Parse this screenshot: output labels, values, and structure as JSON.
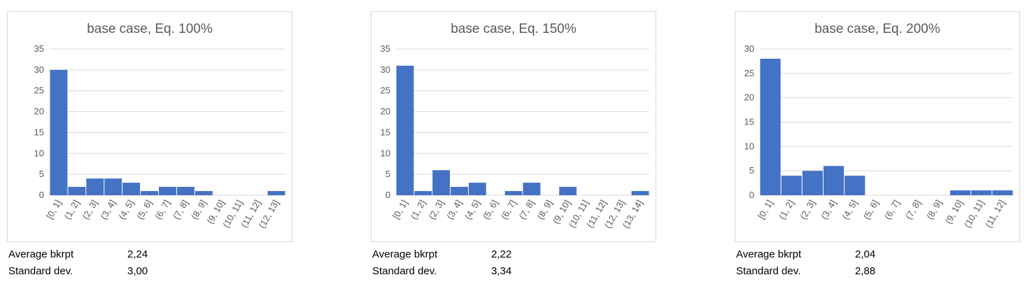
{
  "colors": {
    "bar": "#4472c4",
    "grid": "#d9d9d9",
    "axis_text": "#595959"
  },
  "chart_data": [
    {
      "type": "bar",
      "title": "base case, Eq. 100%",
      "categories": [
        "[0, 1]",
        "(1, 2]",
        "(2, 3]",
        "(3, 4]",
        "(4, 5]",
        "(5, 6]",
        "(6, 7]",
        "(7, 8]",
        "(8, 9]",
        "(9, 10]",
        "(10, 11]",
        "(11, 12]",
        "(12, 13]"
      ],
      "values": [
        30,
        2,
        4,
        4,
        3,
        1,
        2,
        2,
        1,
        0,
        0,
        0,
        1
      ],
      "yticks": [
        0,
        5,
        10,
        15,
        20,
        25,
        30,
        35
      ],
      "ylim": [
        0,
        35
      ],
      "xlabel": "",
      "ylabel": "",
      "grid": true
    },
    {
      "type": "bar",
      "title": "base case, Eq. 150%",
      "categories": [
        "[0, 1]",
        "(1, 2]",
        "(2, 3]",
        "(3, 4]",
        "(4, 5]",
        "(5, 6]",
        "(6, 7]",
        "(7, 8]",
        "(8, 9]",
        "(9, 10]",
        "(10, 11]",
        "(11, 12]",
        "(12, 13]",
        "(13, 14]"
      ],
      "values": [
        31,
        1,
        6,
        2,
        3,
        0,
        1,
        3,
        0,
        2,
        0,
        0,
        0,
        1
      ],
      "yticks": [
        0,
        5,
        10,
        15,
        20,
        25,
        30,
        35
      ],
      "ylim": [
        0,
        35
      ],
      "xlabel": "",
      "ylabel": "",
      "grid": true
    },
    {
      "type": "bar",
      "title": "base case, Eq. 200%",
      "categories": [
        "[0, 1]",
        "(1, 2]",
        "(2, 3]",
        "(3, 4]",
        "(4, 5]",
        "(5, 6]",
        "(6, 7]",
        "(7, 8]",
        "(8, 9]",
        "(9, 10]",
        "(10, 11]",
        "(11, 12]"
      ],
      "values": [
        28,
        4,
        5,
        6,
        4,
        0,
        0,
        0,
        0,
        1,
        1,
        1
      ],
      "yticks": [
        0,
        5,
        10,
        15,
        20,
        25,
        30
      ],
      "ylim": [
        0,
        30
      ],
      "xlabel": "",
      "ylabel": "",
      "grid": true
    }
  ],
  "stats": [
    {
      "avg_label": "Average bkrpt",
      "avg_value": "2,24",
      "std_label": "Standard dev.",
      "std_value": "3,00"
    },
    {
      "avg_label": "Average bkrpt",
      "avg_value": "2,22",
      "std_label": "Standard dev.",
      "std_value": "3,34"
    },
    {
      "avg_label": "Average bkrpt",
      "avg_value": "2,04",
      "std_label": "Standard dev.",
      "std_value": "2,88"
    }
  ]
}
